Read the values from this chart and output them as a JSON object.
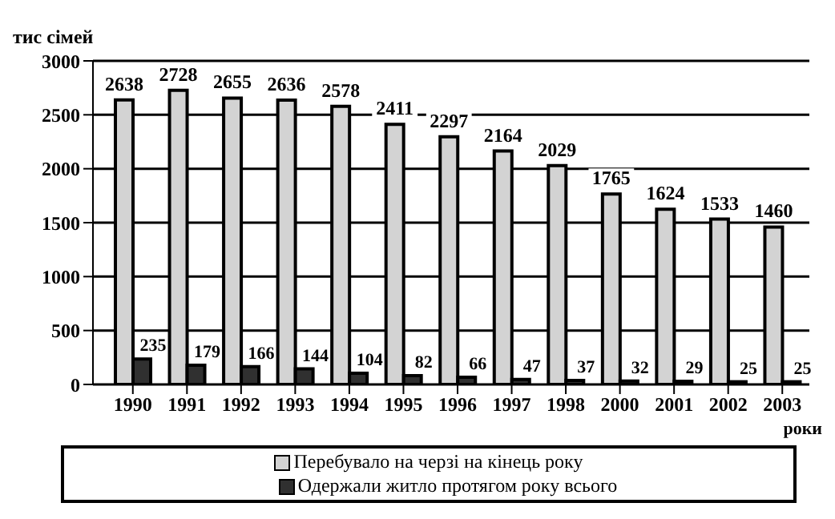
{
  "chart_data": {
    "type": "bar",
    "ylabel": "тис сімей",
    "xlabel": "роки",
    "categories": [
      "1990",
      "1991",
      "1992",
      "1993",
      "1994",
      "1995",
      "1996",
      "1997",
      "1998",
      "2000",
      "2001",
      "2002",
      "2003"
    ],
    "series": [
      {
        "name": "Перебувало на черзі  на кінець року",
        "color": "#d3d3d3",
        "values": [
          2638,
          2728,
          2655,
          2636,
          2578,
          2411,
          2297,
          2164,
          2029,
          1765,
          1624,
          1533,
          1460
        ]
      },
      {
        "name": "Одержали житло протягом року всього",
        "color": "#303030",
        "values": [
          235,
          179,
          166,
          144,
          104,
          82,
          66,
          47,
          37,
          32,
          29,
          25,
          25
        ]
      }
    ],
    "ylim": [
      0,
      3000
    ],
    "yticks": [
      0,
      500,
      1000,
      1500,
      2000,
      2500,
      3000
    ],
    "grid": "y",
    "legend": "bottom",
    "data_labels": true
  }
}
